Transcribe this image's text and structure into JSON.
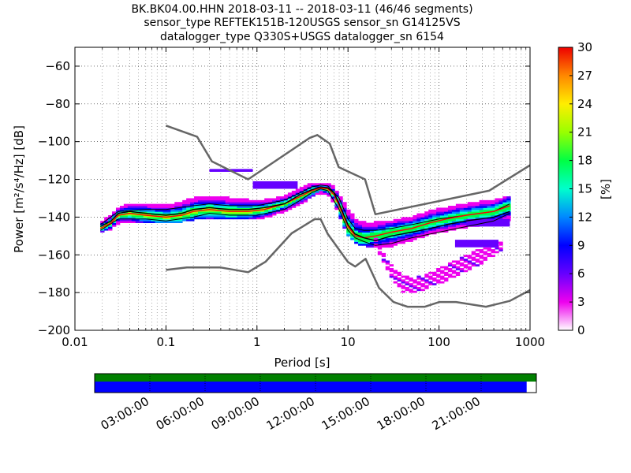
{
  "title_lines": [
    "BK.BK04.00.HHN   2018-03-11 -- 2018-03-11  (46/46 segments)",
    "sensor_type REFTEK151B-120USGS sensor_sn G14125VS",
    "datalogger_type Q330S+USGS datalogger_sn 6154"
  ],
  "chart_data": [
    {
      "type": "heatmap",
      "kind": "probabilistic power spectral density",
      "xlabel_text": "Period [s]",
      "ylabel_text": "Power [m²/s⁴/Hz] [dB]",
      "x_scale": "log",
      "xlim": [
        0.01,
        1000
      ],
      "ylim": [
        -200,
        -50
      ],
      "x_ticks": [
        0.01,
        0.1,
        1,
        10,
        100,
        1000
      ],
      "x_tick_labels": [
        "0.01",
        "0.1",
        "1",
        "10",
        "100",
        "1000"
      ],
      "y_ticks": [
        -200,
        -180,
        -160,
        -140,
        -120,
        -100,
        -80,
        -60
      ],
      "y_tick_labels": [
        "−200",
        "−180",
        "−160",
        "−140",
        "−120",
        "−100",
        "−80",
        "−60"
      ],
      "grid": "dotted",
      "colorbar": {
        "label": "[%]",
        "range": [
          0,
          30
        ],
        "ticks": [
          0,
          3,
          6,
          9,
          12,
          15,
          18,
          21,
          24,
          27,
          30
        ],
        "tick_labels": [
          "0",
          "3",
          "6",
          "9",
          "12",
          "15",
          "18",
          "21",
          "24",
          "27",
          "30"
        ],
        "colormap": "pqlx"
      },
      "nhnm": {
        "name": "NHNM",
        "x": [
          0.1,
          0.22,
          0.32,
          0.8,
          3.8,
          4.6,
          6.3,
          7.9,
          15.4,
          20,
          354.8,
          1000
        ],
        "y": [
          -91.5,
          -97.4,
          -110.5,
          -120,
          -98,
          -96.5,
          -101,
          -113.5,
          -120,
          -138.5,
          -126,
          -112.5
        ]
      },
      "nlnm": {
        "name": "NLNM",
        "x": [
          0.1,
          0.17,
          0.4,
          0.8,
          1.24,
          2.4,
          4.3,
          5,
          6,
          10,
          12,
          15.6,
          21.9,
          31.6,
          45,
          70,
          101,
          154,
          328,
          600,
          1000
        ],
        "y": [
          -168,
          -166.7,
          -166.7,
          -169.2,
          -163.7,
          -148.6,
          -141.1,
          -141.1,
          -149,
          -163.8,
          -166.2,
          -162.1,
          -177.5,
          -185,
          -187.5,
          -187.5,
          -185,
          -185,
          -187.5,
          -184.4,
          -178.7
        ]
      },
      "mode_line": {
        "name": "mode",
        "x": [
          0.019,
          0.025,
          0.03,
          0.04,
          0.06,
          0.1,
          0.15,
          0.2,
          0.3,
          0.5,
          0.8,
          1.2,
          2,
          3,
          4,
          5,
          6,
          7,
          8,
          10,
          12,
          15,
          20,
          30,
          50,
          80,
          120,
          200,
          400,
          600
        ],
        "y": [
          -146,
          -143,
          -139,
          -138,
          -139,
          -140,
          -139,
          -137,
          -136,
          -137,
          -137,
          -136,
          -133,
          -129,
          -126,
          -124.5,
          -125,
          -128,
          -134,
          -145,
          -150,
          -151,
          -150,
          -148,
          -146,
          -143,
          -141,
          -139,
          -137,
          -134
        ]
      },
      "mean_line": {
        "name": "mean",
        "x": [
          0.019,
          0.025,
          0.03,
          0.04,
          0.06,
          0.1,
          0.15,
          0.2,
          0.3,
          0.5,
          0.8,
          1.2,
          2,
          3,
          4,
          5,
          6,
          7,
          8,
          10,
          12,
          15,
          20,
          30,
          50,
          80,
          120,
          200,
          400,
          600
        ],
        "y": [
          -145,
          -142,
          -138,
          -137,
          -138,
          -139,
          -138,
          -136,
          -135,
          -136,
          -136,
          -135,
          -133,
          -128,
          -125.5,
          -124,
          -124.5,
          -127,
          -133,
          -144,
          -149,
          -151,
          -152.5,
          -150,
          -148,
          -146,
          -144,
          -142,
          -140,
          -137
        ]
      },
      "percentile_lines": [
        {
          "name": "lower",
          "x": [
            0.019,
            0.03,
            0.06,
            0.1,
            0.2,
            0.3,
            0.5,
            1,
            2,
            3,
            4,
            5,
            6,
            8,
            10,
            12,
            15,
            20,
            30,
            50,
            100,
            200,
            400,
            600
          ],
          "y": [
            -147,
            -141,
            -141,
            -142,
            -140,
            -138,
            -139,
            -139,
            -136,
            -131,
            -127,
            -125,
            -126,
            -136,
            -147,
            -151,
            -153,
            -155,
            -154,
            -151,
            -148,
            -145,
            -142,
            -138
          ]
        },
        {
          "name": "upper",
          "x": [
            0.019,
            0.03,
            0.06,
            0.1,
            0.2,
            0.3,
            0.5,
            1,
            2,
            3,
            4,
            5,
            6,
            8,
            10,
            12,
            15,
            20,
            30,
            50,
            100,
            200,
            400,
            600
          ],
          "y": [
            -144,
            -137,
            -136,
            -136,
            -134,
            -133,
            -134,
            -134,
            -131,
            -127,
            -124,
            -123,
            -123.5,
            -130,
            -141,
            -146,
            -147,
            -147,
            -146,
            -144,
            -141,
            -139,
            -137,
            -133
          ]
        }
      ],
      "density_bands": [
        {
          "name": "main",
          "x": [
            0.019,
            0.025,
            0.03,
            0.04,
            0.06,
            0.1,
            0.15,
            0.2,
            0.3,
            0.5,
            0.8,
            1.2,
            2,
            3,
            4,
            5,
            6,
            7,
            8,
            10,
            12,
            15,
            20,
            30,
            50,
            80,
            120,
            200,
            400,
            600
          ],
          "y_low": [
            -148,
            -146,
            -143,
            -143,
            -143,
            -143,
            -142,
            -141,
            -141,
            -141,
            -141,
            -140,
            -137,
            -133,
            -129,
            -127,
            -128,
            -132,
            -139,
            -149,
            -153,
            -155,
            -156,
            -155,
            -152,
            -149,
            -147,
            -145,
            -143,
            -141
          ],
          "y_high": [
            -143,
            -139,
            -135,
            -133,
            -133,
            -134,
            -132,
            -130,
            -129,
            -130,
            -131,
            -131,
            -129,
            -125,
            -122,
            -122,
            -122,
            -124,
            -128,
            -136,
            -141,
            -143,
            -143,
            -142,
            -140,
            -137,
            -135,
            -133,
            -131,
            -129
          ]
        },
        {
          "name": "long-period-lower",
          "x": [
            20,
            25,
            30,
            40,
            50,
            70,
            100,
            150,
            200,
            300,
            400,
            500
          ],
          "y_low": [
            -155,
            -165,
            -172,
            -179,
            -180,
            -178,
            -175,
            -171,
            -168,
            -164,
            -160,
            -157
          ],
          "y_high": [
            -151,
            -159,
            -166,
            -171,
            -173,
            -171,
            -167,
            -163,
            -160,
            -157,
            -154,
            -152
          ]
        }
      ],
      "density_patches": [
        {
          "x": [
            0.3,
            0.9
          ],
          "y": [
            -116,
            -114.5
          ],
          "level": 2
        },
        {
          "x": [
            0.9,
            2.8
          ],
          "y": [
            -125,
            -121
          ],
          "level": 2
        },
        {
          "x": [
            200,
            600
          ],
          "y": [
            -145,
            -141
          ],
          "level": 2
        },
        {
          "x": [
            150,
            450
          ],
          "y": [
            -156,
            -152
          ],
          "level": 2
        }
      ],
      "time_strip": {
        "data_coverage_end_fraction": 0.978,
        "tick_labels": [
          "03:00:00",
          "06:00:00",
          "09:00:00",
          "12:00:00",
          "15:00:00",
          "18:00:00",
          "21:00:00"
        ],
        "tick_hours": [
          3,
          6,
          9,
          12,
          15,
          18,
          21
        ],
        "span_hours": 24
      }
    }
  ],
  "colors": {
    "noise_model": "#666666",
    "mode": "#ff0000",
    "mean": "#000000",
    "percentile": "#000000",
    "coverage_top": "#008000",
    "coverage_bottom": "#0000ff"
  }
}
